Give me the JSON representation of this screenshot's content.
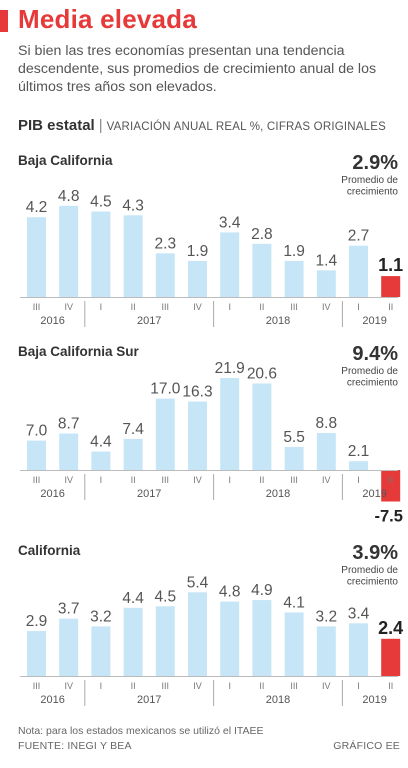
{
  "header": {
    "title": "Media elevada",
    "subtitle": "Si bien las tres economías presentan una tendencia descendente, sus promedios de crecimiento anual de los últimos tres años son elevados.",
    "pib_label": "PIB estatal",
    "pib_units": "VARIACIÓN ANUAL REAL %, CIFRAS ORIGINALES"
  },
  "colors": {
    "bar": "#c6e6f7",
    "highlight": "#e63a3a",
    "accent": "#e63a3a",
    "text": "#555555"
  },
  "chart_data": [
    {
      "type": "bar",
      "title": "Baja California",
      "categories": [
        "III",
        "IV",
        "I",
        "II",
        "III",
        "IV",
        "I",
        "II",
        "III",
        "IV",
        "I",
        "II"
      ],
      "years": [
        {
          "label": "2016",
          "count": 2
        },
        {
          "label": "2017",
          "count": 4
        },
        {
          "label": "2018",
          "count": 4
        },
        {
          "label": "2019",
          "count": 2
        }
      ],
      "values": [
        4.2,
        4.8,
        4.5,
        4.3,
        2.3,
        1.9,
        3.4,
        2.8,
        1.9,
        1.4,
        2.7,
        1.1
      ],
      "labels": [
        "4.2",
        "4.8",
        "4.5",
        "4.3",
        "2.3",
        "1.9",
        "3.4",
        "2.8",
        "1.9",
        "1.4",
        "2.7",
        "1.1"
      ],
      "highlight_index": 11,
      "average_value": "2.9%",
      "average_label": [
        "Promedio de",
        "crecimiento"
      ]
    },
    {
      "type": "bar",
      "title": "Baja California Sur",
      "categories": [
        "III",
        "IV",
        "I",
        "II",
        "III",
        "IV",
        "I",
        "II",
        "III",
        "IV",
        "I",
        "II"
      ],
      "years": [
        {
          "label": "2016",
          "count": 2
        },
        {
          "label": "2017",
          "count": 4
        },
        {
          "label": "2018",
          "count": 4
        },
        {
          "label": "2019",
          "count": 2
        }
      ],
      "values": [
        7.0,
        8.7,
        4.4,
        7.4,
        17.0,
        16.3,
        21.9,
        20.6,
        5.5,
        8.8,
        2.1,
        -7.5
      ],
      "labels": [
        "7.0",
        "8.7",
        "4.4",
        "7.4",
        "17.0",
        "16.3",
        "21.9",
        "20.6",
        "5.5",
        "8.8",
        "2.1",
        "-7.5"
      ],
      "highlight_index": 11,
      "average_value": "9.4%",
      "average_label": [
        "Promedio de",
        "crecimiento"
      ]
    },
    {
      "type": "bar",
      "title": "California",
      "categories": [
        "III",
        "IV",
        "I",
        "II",
        "III",
        "IV",
        "I",
        "II",
        "III",
        "IV",
        "I",
        "II"
      ],
      "years": [
        {
          "label": "2016",
          "count": 2
        },
        {
          "label": "2017",
          "count": 4
        },
        {
          "label": "2018",
          "count": 4
        },
        {
          "label": "2019",
          "count": 2
        }
      ],
      "values": [
        2.9,
        3.7,
        3.2,
        4.4,
        4.5,
        5.4,
        4.8,
        4.9,
        4.1,
        3.2,
        3.4,
        2.4
      ],
      "labels": [
        "2.9",
        "3.7",
        "3.2",
        "4.4",
        "4.5",
        "5.4",
        "4.8",
        "4.9",
        "4.1",
        "3.2",
        "3.4",
        "2.4"
      ],
      "highlight_index": 11,
      "average_value": "3.9%",
      "average_label": [
        "Promedio de",
        "crecimiento"
      ]
    }
  ],
  "footer": {
    "note": "Nota: para los estados mexicanos se utilizó el ITAEE",
    "source": "FUENTE: INEGI Y BEA",
    "credit": "GRÁFICO EE"
  }
}
